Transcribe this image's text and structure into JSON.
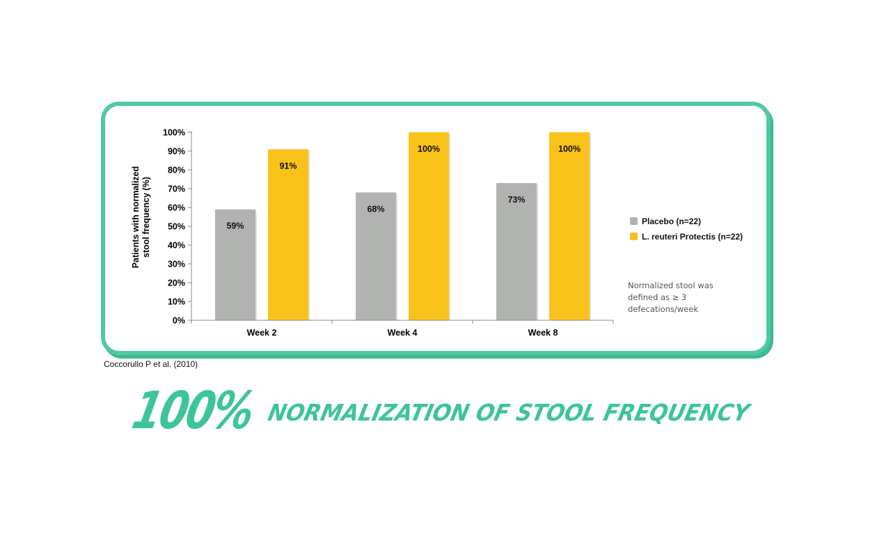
{
  "chart_data": {
    "type": "bar",
    "categories": [
      "Week 2",
      "Week 4",
      "Week 8"
    ],
    "series": [
      {
        "name": "Placebo (n=22)",
        "values": [
          59,
          68,
          73
        ],
        "labels": [
          "59%",
          "68%",
          "73%"
        ],
        "color": "#b1b3b0"
      },
      {
        "name": "L. reuteri Protectis (n=22)",
        "values": [
          91,
          100,
          100
        ],
        "labels": [
          "91%",
          "100%",
          "100%"
        ],
        "color": "#f9c21b"
      }
    ],
    "ylabel_lines": [
      "Patients with normalized",
      "stool frequency (%)"
    ],
    "ylim": [
      0,
      100
    ],
    "yticks": [
      0,
      10,
      20,
      30,
      40,
      50,
      60,
      70,
      80,
      90,
      100
    ],
    "ytick_labels": [
      "0%",
      "10%",
      "20%",
      "30%",
      "40%",
      "50%",
      "60%",
      "70%",
      "80%",
      "90%",
      "100%"
    ],
    "grid": false,
    "legend_position": "right",
    "note_lines": [
      "Normalized stool was",
      "defined as ≥ 3",
      "defecations/week"
    ]
  },
  "citation": "Coccorullo P et al. (2010)",
  "headline": {
    "big": "100%",
    "rest": "NORMALIZATION OF STOOL FREQUENCY",
    "fill_color": "#3cc596",
    "outline_color": "#ffffff"
  },
  "colors": {
    "card_border": "#4fc9a0",
    "axis": "#888888"
  }
}
